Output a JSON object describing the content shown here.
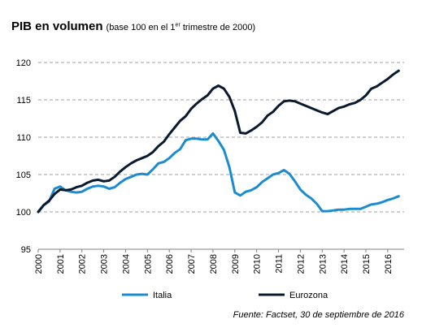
{
  "header": {
    "title": "PIB en volumen",
    "subtitle_prefix": "(base 100 en el 1",
    "subtitle_sup": "er",
    "subtitle_suffix": " trimestre de 2000)"
  },
  "source": "Fuente: Factset, 30 de septiembre de 2016",
  "colors": {
    "italia": "#1a8ccf",
    "eurozona": "#0a1a2e",
    "grid": "#a0a0a0"
  },
  "chart_data": {
    "type": "line",
    "title": "PIB en volumen",
    "subtitle": "(base 100 en el 1er trimestre de 2000)",
    "xlabel": "",
    "ylabel": "",
    "xlim": [
      2000,
      2016.75
    ],
    "ylim": [
      95,
      120
    ],
    "yticks": [
      95,
      100,
      105,
      110,
      115,
      120
    ],
    "xticks": [
      "2000",
      "2001",
      "2002",
      "2003",
      "2004",
      "2005",
      "2006",
      "2007",
      "2008",
      "2009",
      "2010",
      "2011",
      "2012",
      "2013",
      "2014",
      "2015",
      "2016"
    ],
    "grid": "horizontal dashed",
    "legend": "bottom",
    "series": [
      {
        "name": "Italia",
        "color": "#1a8ccf",
        "x": [
          2000,
          2000.25,
          2000.5,
          2000.75,
          2001,
          2001.25,
          2001.5,
          2001.75,
          2002,
          2002.25,
          2002.5,
          2002.75,
          2003,
          2003.25,
          2003.5,
          2003.75,
          2004,
          2004.25,
          2004.5,
          2004.75,
          2005,
          2005.25,
          2005.5,
          2005.75,
          2006,
          2006.25,
          2006.5,
          2006.75,
          2007,
          2007.25,
          2007.5,
          2007.75,
          2008,
          2008.25,
          2008.5,
          2008.75,
          2009,
          2009.25,
          2009.5,
          2009.75,
          2010,
          2010.25,
          2010.5,
          2010.75,
          2011,
          2011.25,
          2011.5,
          2011.75,
          2012,
          2012.25,
          2012.5,
          2012.75,
          2013,
          2013.25,
          2013.5,
          2013.75,
          2014,
          2014.25,
          2014.5,
          2014.75,
          2015,
          2015.25,
          2015.5,
          2015.75,
          2016,
          2016.25,
          2016.5
        ],
        "values": [
          100,
          100.9,
          101.4,
          103.1,
          103.4,
          102.9,
          102.7,
          102.6,
          102.7,
          103.1,
          103.4,
          103.5,
          103.4,
          103.1,
          103.3,
          103.9,
          104.4,
          104.7,
          105.0,
          105.1,
          105.0,
          105.7,
          106.5,
          106.7,
          107.2,
          107.9,
          108.4,
          109.6,
          109.8,
          109.8,
          109.7,
          109.7,
          110.5,
          109.5,
          108.3,
          106.0,
          102.6,
          102.2,
          102.7,
          102.9,
          103.3,
          104.0,
          104.5,
          105.0,
          105.2,
          105.6,
          105.1,
          104.1,
          103.0,
          102.3,
          101.8,
          101.1,
          100.1,
          100.1,
          100.2,
          100.3,
          100.3,
          100.4,
          100.4,
          100.4,
          100.7,
          101.0,
          101.1,
          101.3,
          101.6,
          101.8,
          102.1
        ]
      },
      {
        "name": "Eurozona",
        "color": "#0a1a2e",
        "x": [
          2000,
          2000.25,
          2000.5,
          2000.75,
          2001,
          2001.25,
          2001.5,
          2001.75,
          2002,
          2002.25,
          2002.5,
          2002.75,
          2003,
          2003.25,
          2003.5,
          2003.75,
          2004,
          2004.25,
          2004.5,
          2004.75,
          2005,
          2005.25,
          2005.5,
          2005.75,
          2006,
          2006.25,
          2006.5,
          2006.75,
          2007,
          2007.25,
          2007.5,
          2007.75,
          2008,
          2008.25,
          2008.5,
          2008.75,
          2009,
          2009.25,
          2009.5,
          2009.75,
          2010,
          2010.25,
          2010.5,
          2010.75,
          2011,
          2011.25,
          2011.5,
          2011.75,
          2012,
          2012.25,
          2012.5,
          2012.75,
          2013,
          2013.25,
          2013.5,
          2013.75,
          2014,
          2014.25,
          2014.5,
          2014.75,
          2015,
          2015.25,
          2015.5,
          2015.75,
          2016,
          2016.25,
          2016.5
        ],
        "values": [
          100,
          100.9,
          101.5,
          102.4,
          103.0,
          102.9,
          103.0,
          103.3,
          103.5,
          103.9,
          104.2,
          104.3,
          104.1,
          104.2,
          104.7,
          105.4,
          106.0,
          106.5,
          106.9,
          107.2,
          107.5,
          108.0,
          108.8,
          109.4,
          110.4,
          111.3,
          112.2,
          112.8,
          113.8,
          114.5,
          115.1,
          115.6,
          116.5,
          116.9,
          116.5,
          115.4,
          113.5,
          110.6,
          110.5,
          110.9,
          111.4,
          112.0,
          112.9,
          113.4,
          114.2,
          114.8,
          114.9,
          114.8,
          114.5,
          114.2,
          113.9,
          113.6,
          113.3,
          113.1,
          113.5,
          113.9,
          114.1,
          114.4,
          114.6,
          115.0,
          115.6,
          116.5,
          116.8,
          117.3,
          117.8,
          118.4,
          118.9
        ]
      }
    ]
  }
}
